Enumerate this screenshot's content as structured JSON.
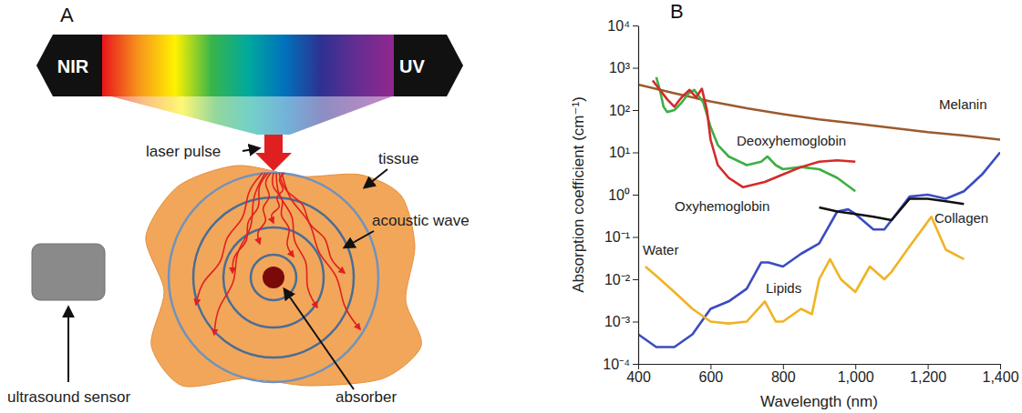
{
  "panel_labels": [
    "A",
    "B"
  ],
  "diagram": {
    "spectrum": [
      "NIR",
      "UV"
    ],
    "labels": [
      "laser pulse",
      "tissue",
      "acoustic wave",
      "absorber",
      "ultrasound sensor"
    ]
  },
  "chart_data": {
    "type": "line",
    "log": "y",
    "xlabel": "Wavelength (nm)",
    "ylabel": "Absorption coefficient (cm⁻¹)",
    "xlim": [
      400,
      1400
    ],
    "xticks": [
      400,
      600,
      800,
      {
        "value": 1000,
        "label": "1,000"
      },
      {
        "value": 1200,
        "label": "1,200"
      },
      {
        "value": 1400,
        "label": "1,400"
      }
    ],
    "ylim": [
      0.0001,
      10000
    ],
    "yticks": [
      {
        "value": 0.0001,
        "label": "10⁻⁴"
      },
      {
        "value": 0.001,
        "label": "10⁻³"
      },
      {
        "value": 0.01,
        "label": "10⁻²"
      },
      {
        "value": 0.1,
        "label": "10⁻¹"
      },
      {
        "value": 1,
        "label": "10⁰"
      },
      {
        "value": 10,
        "label": "10¹"
      },
      {
        "value": 100,
        "label": "10²"
      },
      {
        "value": 1000,
        "label": "10³"
      },
      {
        "value": 10000,
        "label": "10⁴"
      }
    ],
    "series": [
      {
        "name": "Melanin",
        "color": "#9b5a2c",
        "x": [
          400,
          500,
          600,
          700,
          800,
          900,
          1000,
          1100,
          1200,
          1300,
          1400
        ],
        "values": [
          400,
          250,
          160,
          110,
          80,
          60,
          48,
          38,
          30,
          25,
          20
        ]
      },
      {
        "name": "Deoxyhemoglobin",
        "color": "#3cb043",
        "x": [
          450,
          460,
          470,
          480,
          500,
          520,
          540,
          555,
          570,
          580,
          600,
          620,
          650,
          700,
          740,
          757,
          780,
          800,
          850,
          900,
          950,
          1000
        ],
        "values": [
          600,
          300,
          120,
          90,
          100,
          150,
          250,
          300,
          200,
          150,
          40,
          15,
          8,
          5,
          6,
          8,
          5,
          4,
          4.5,
          4,
          2.5,
          1.2
        ]
      },
      {
        "name": "Oxyhemoglobin",
        "color": "#d42a2a",
        "x": [
          440,
          460,
          480,
          500,
          520,
          542,
          560,
          576,
          590,
          600,
          620,
          650,
          690,
          750,
          800,
          850,
          900,
          950,
          1000
        ],
        "values": [
          500,
          300,
          180,
          120,
          200,
          300,
          200,
          320,
          100,
          20,
          5,
          2.5,
          1.5,
          2,
          3,
          4.5,
          6,
          6.5,
          6
        ]
      },
      {
        "name": "Water",
        "color": "#3b4cc0",
        "x": [
          400,
          450,
          500,
          550,
          600,
          650,
          700,
          740,
          760,
          800,
          850,
          900,
          950,
          980,
          1000,
          1050,
          1080,
          1100,
          1150,
          1200,
          1250,
          1300,
          1350,
          1400
        ],
        "values": [
          0.0005,
          0.00025,
          0.00025,
          0.0005,
          0.002,
          0.003,
          0.006,
          0.025,
          0.025,
          0.02,
          0.04,
          0.07,
          0.4,
          0.45,
          0.35,
          0.15,
          0.15,
          0.25,
          0.9,
          1.0,
          0.8,
          1.2,
          3,
          10
        ]
      },
      {
        "name": "Lipids",
        "color": "#f0b323",
        "x": [
          420,
          450,
          500,
          550,
          600,
          650,
          700,
          750,
          780,
          800,
          850,
          880,
          900,
          930,
          960,
          1000,
          1040,
          1080,
          1100,
          1150,
          1210,
          1250,
          1300
        ],
        "values": [
          0.02,
          0.012,
          0.005,
          0.002,
          0.001,
          0.0009,
          0.001,
          0.003,
          0.001,
          0.001,
          0.002,
          0.0015,
          0.01,
          0.03,
          0.01,
          0.005,
          0.02,
          0.01,
          0.015,
          0.06,
          0.3,
          0.05,
          0.03
        ]
      },
      {
        "name": "Collagen",
        "color": "#111111",
        "x": [
          900,
          950,
          1000,
          1050,
          1100,
          1150,
          1200,
          1250,
          1300
        ],
        "values": [
          0.5,
          0.4,
          0.35,
          0.3,
          0.25,
          0.8,
          0.8,
          0.7,
          0.6
        ]
      }
    ]
  }
}
